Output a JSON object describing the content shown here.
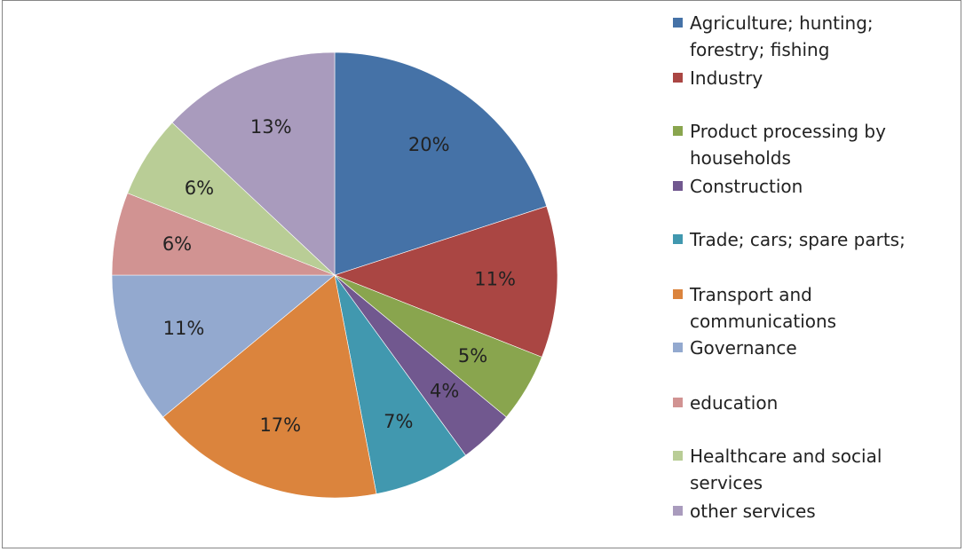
{
  "chart_data": {
    "type": "pie",
    "title": "",
    "slices": [
      {
        "name": "Agriculture; hunting;\nforestry; fishing",
        "value": 20,
        "label": "20%",
        "color": "#4572A7"
      },
      {
        "name": "Industry",
        "value": 11,
        "label": "11%",
        "color": "#AA4643"
      },
      {
        "name": "Product processing by\nhouseholds",
        "value": 5,
        "label": "5%",
        "color": "#89A54E"
      },
      {
        "name": "Construction",
        "value": 4,
        "label": "4%",
        "color": "#71588F"
      },
      {
        "name": "Trade; cars; spare parts;",
        "value": 7,
        "label": "7%",
        "color": "#4198AF"
      },
      {
        "name": "Transport and\ncommunications",
        "value": 17,
        "label": "17%",
        "color": "#DB843D"
      },
      {
        "name": "Governance",
        "value": 11,
        "label": "11%",
        "color": "#93A9CF"
      },
      {
        "name": "education",
        "value": 6,
        "label": "6%",
        "color": "#D19392"
      },
      {
        "name": "Healthcare and social\nservices",
        "value": 6,
        "label": "6%",
        "color": "#B9CD96"
      },
      {
        "name": "other services",
        "value": 13,
        "label": "13%",
        "color": "#A99BBD"
      }
    ],
    "legend_position": "right"
  }
}
